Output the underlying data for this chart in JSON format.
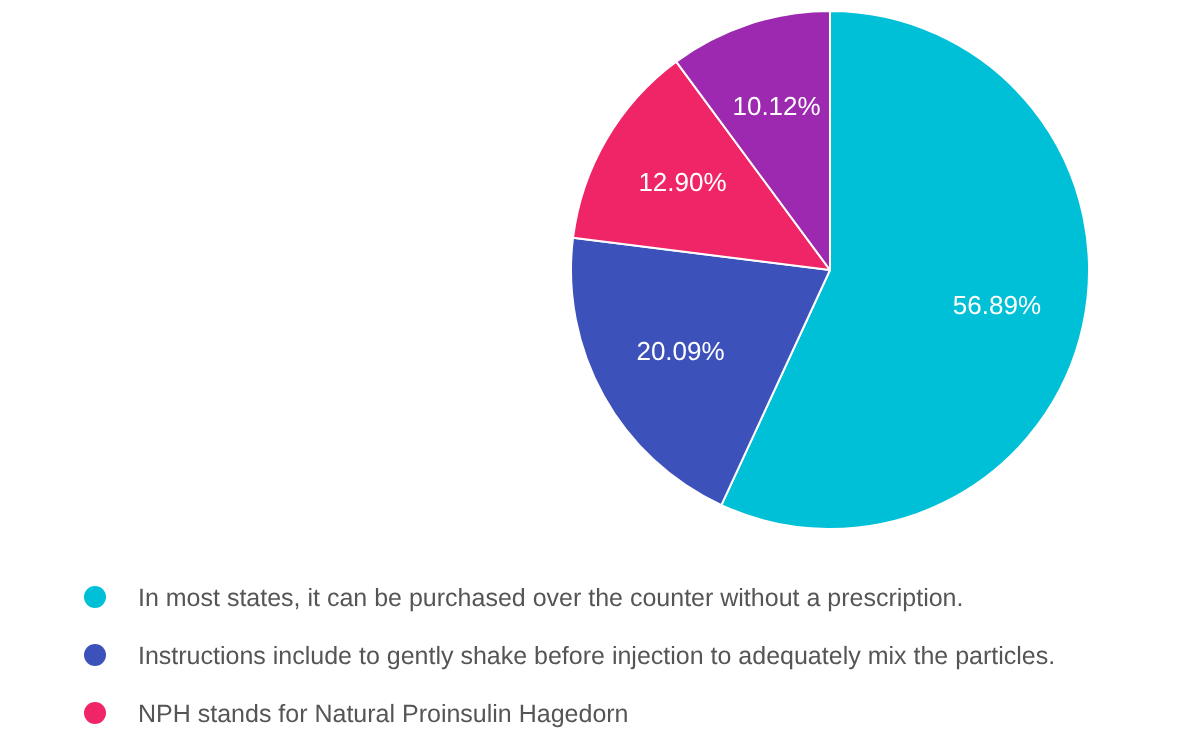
{
  "chart_data": {
    "type": "pie",
    "categories": [
      "In most states, it can be purchased over the counter without a prescription.",
      "Instructions include to gently shake before injection to adequately mix the particles.",
      "NPH stands for Natural Proinsulin Hagedorn",
      null
    ],
    "values": [
      56.89,
      20.09,
      12.9,
      10.12
    ],
    "colors": [
      "#00c0d8",
      "#3d51ba",
      "#ef2567",
      "#9c29b0"
    ],
    "value_labels": [
      "56.89%",
      "20.09%",
      "12.90%",
      "10.12%"
    ],
    "legend": "bottom"
  }
}
